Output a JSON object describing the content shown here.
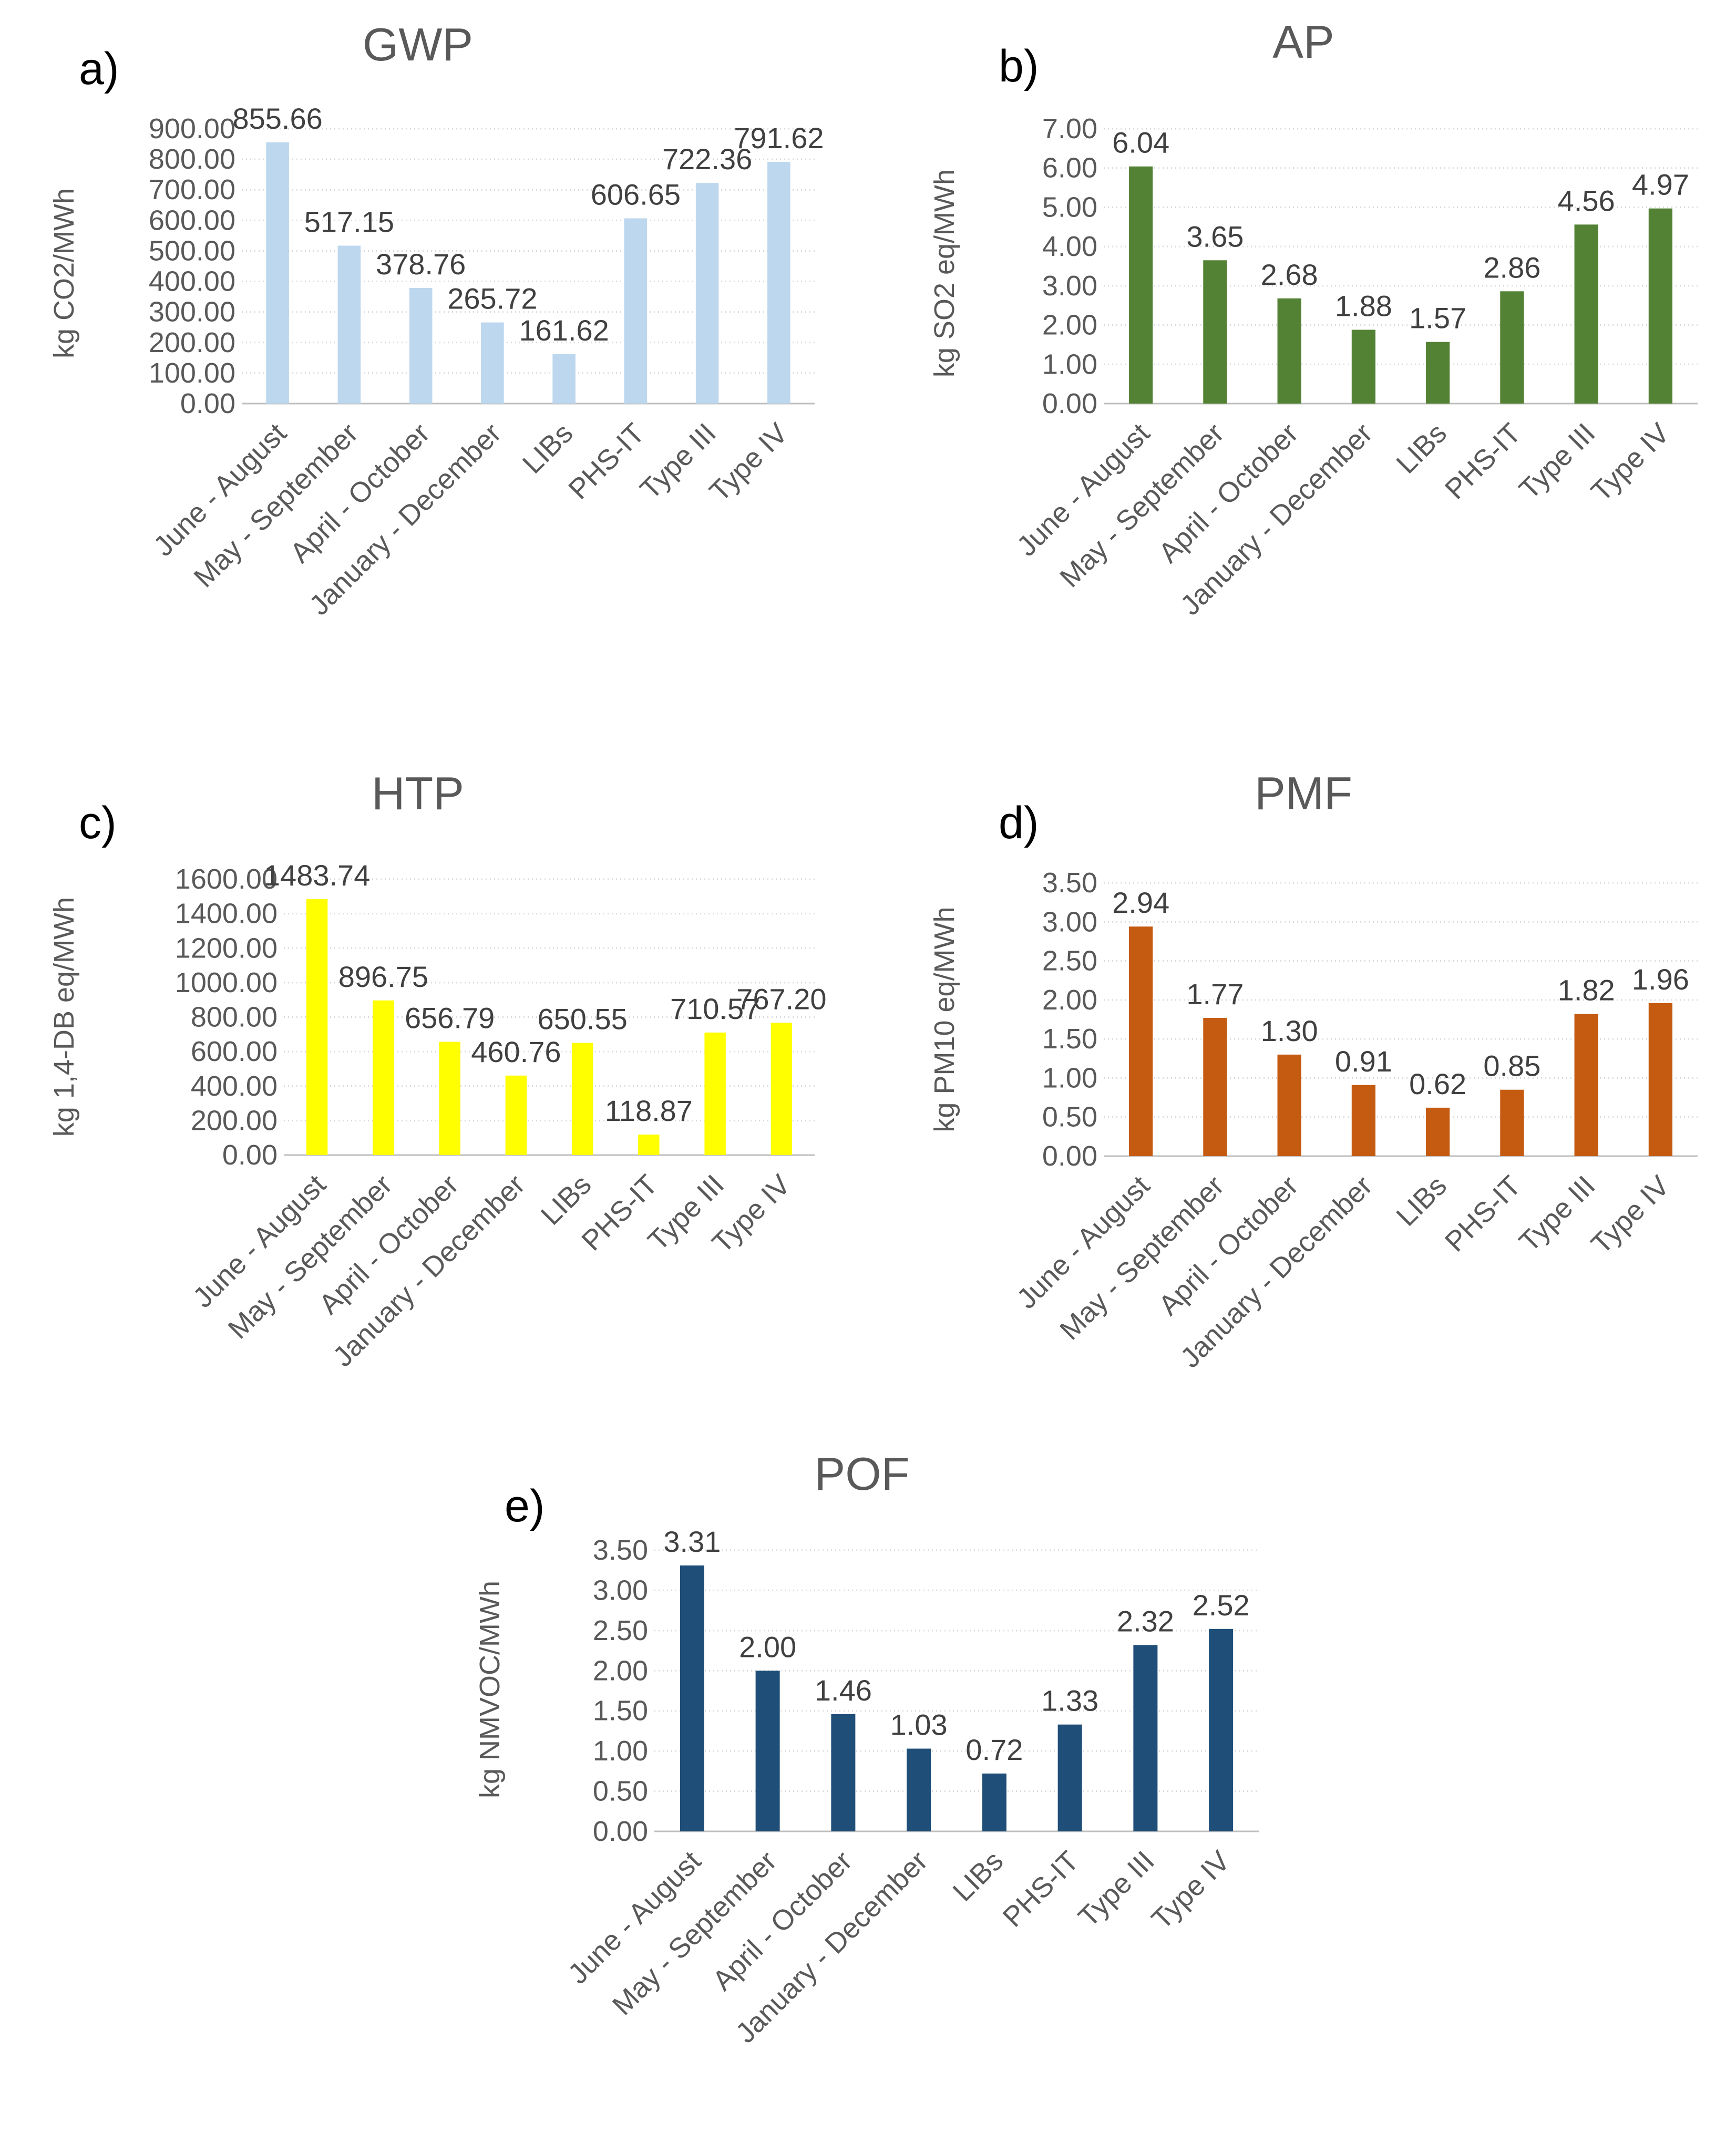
{
  "chart_data": [
    {
      "panel": "a)",
      "type": "bar",
      "title": "GWP",
      "ylabel": "kg CO2/MWh",
      "categories": [
        "June - August",
        "May - September",
        "April - October",
        "January - December",
        "LIBs",
        "PHS-IT",
        "Type III",
        "Type IV"
      ],
      "values": [
        855.66,
        517.15,
        378.76,
        265.72,
        161.62,
        606.65,
        722.36,
        791.62
      ],
      "value_labels": [
        "855.66",
        "517.15",
        "378.76",
        "265.72",
        "161.62",
        "606.65",
        "722.36",
        "791.62"
      ],
      "ylim": [
        0,
        900
      ],
      "yticks": [
        "0.00",
        "100.00",
        "200.00",
        "300.00",
        "400.00",
        "500.00",
        "600.00",
        "700.00",
        "800.00",
        "900.00"
      ],
      "color": "#bdd7ee",
      "grid": true
    },
    {
      "panel": "b)",
      "type": "bar",
      "title": "AP",
      "ylabel": "kg SO2 eq/MWh",
      "categories": [
        "June - August",
        "May - September",
        "April - October",
        "January - December",
        "LIBs",
        "PHS-IT",
        "Type III",
        "Type IV"
      ],
      "values": [
        6.04,
        3.65,
        2.68,
        1.88,
        1.57,
        2.86,
        4.56,
        4.97
      ],
      "value_labels": [
        "6.04",
        "3.65",
        "2.68",
        "1.88",
        "1.57",
        "2.86",
        "4.56",
        "4.97"
      ],
      "ylim": [
        0,
        7
      ],
      "yticks": [
        "0.00",
        "1.00",
        "2.00",
        "3.00",
        "4.00",
        "5.00",
        "6.00",
        "7.00"
      ],
      "color": "#548235",
      "grid": true
    },
    {
      "panel": "c)",
      "type": "bar",
      "title": "HTP",
      "ylabel": "kg 1,4-DB eq/MWh",
      "categories": [
        "June - August",
        "May - September",
        "April - October",
        "January - December",
        "LIBs",
        "PHS-IT",
        "Type III",
        "Type IV"
      ],
      "values": [
        1483.74,
        896.75,
        656.79,
        460.76,
        650.55,
        118.87,
        710.57,
        767.2
      ],
      "value_labels": [
        "1483.74",
        "896.75",
        "656.79",
        "460.76",
        "650.55",
        "118.87",
        "710.57",
        "767.20"
      ],
      "ylim": [
        0,
        1600
      ],
      "yticks": [
        "0.00",
        "200.00",
        "400.00",
        "600.00",
        "800.00",
        "1000.00",
        "1200.00",
        "1400.00",
        "1600.00"
      ],
      "color": "#ffff00",
      "grid": true
    },
    {
      "panel": "d)",
      "type": "bar",
      "title": "PMF",
      "ylabel": "kg PM10 eq/MWh",
      "categories": [
        "June - August",
        "May - September",
        "April - October",
        "January - December",
        "LIBs",
        "PHS-IT",
        "Type III",
        "Type IV"
      ],
      "values": [
        2.94,
        1.77,
        1.3,
        0.91,
        0.62,
        0.85,
        1.82,
        1.96
      ],
      "value_labels": [
        "2.94",
        "1.77",
        "1.30",
        "0.91",
        "0.62",
        "0.85",
        "1.82",
        "1.96"
      ],
      "ylim": [
        0,
        3.5
      ],
      "yticks": [
        "0.00",
        "0.50",
        "1.00",
        "1.50",
        "2.00",
        "2.50",
        "3.00",
        "3.50"
      ],
      "color": "#c55a11",
      "grid": true
    },
    {
      "panel": "e)",
      "type": "bar",
      "title": "POF",
      "ylabel": "kg NMVOC/MWh",
      "categories": [
        "June - August",
        "May - September",
        "April - October",
        "January - December",
        "LIBs",
        "PHS-IT",
        "Type III",
        "Type IV"
      ],
      "values": [
        3.31,
        2.0,
        1.46,
        1.03,
        0.72,
        1.33,
        2.32,
        2.52
      ],
      "value_labels": [
        "3.31",
        "2.00",
        "1.46",
        "1.03",
        "0.72",
        "1.33",
        "2.32",
        "2.52"
      ],
      "ylim": [
        0,
        3.5
      ],
      "yticks": [
        "0.00",
        "0.50",
        "1.00",
        "1.50",
        "2.00",
        "2.50",
        "3.00",
        "3.50"
      ],
      "color": "#1f4e79",
      "grid": true
    }
  ]
}
